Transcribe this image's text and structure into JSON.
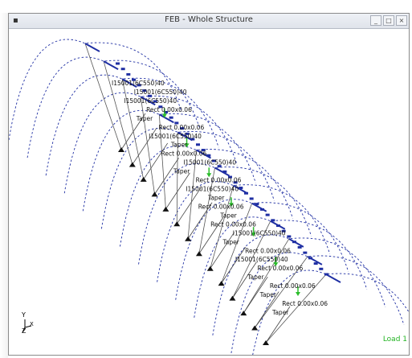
{
  "window": {
    "title": "FEB - Whole Structure",
    "app_icon": "stadium-app-icon",
    "controls": [
      "minimize",
      "maximize",
      "close"
    ]
  },
  "viewport": {
    "axis": {
      "y": "Y",
      "x": "X",
      "z": "Z"
    },
    "status_text": "Load 1",
    "member_labels": [
      "I15001(6C550)40",
      "I15001(6C550)40",
      "I15001(6C550)40",
      "Rect 0.00x0.06",
      "Taper",
      "Rect 0.00x0.06",
      "I15001(6C550)40",
      "Taper",
      "Rect 0.00x0.06",
      "I15001(6C550)40",
      "Taper",
      "Rect 0.00x0.06",
      "I15001(6C550)40",
      "Taper",
      "Rect 0.00x0.06",
      "Taper",
      "Rect 0.00x0.06",
      "I15001(6C550)40",
      "Taper",
      "Rect 0.00x0.06",
      "I15001(6C550)40",
      "Rect 0.00x0.06",
      "Taper",
      "Rect 0.00x0.06",
      "Taper",
      "Rect 0.00x0.06",
      "Taper"
    ]
  },
  "colors": {
    "arc": "#1f2fa3",
    "member": "#1f2fa3",
    "support": "#111111",
    "load": "#2bbd2b",
    "text": "#111111"
  }
}
